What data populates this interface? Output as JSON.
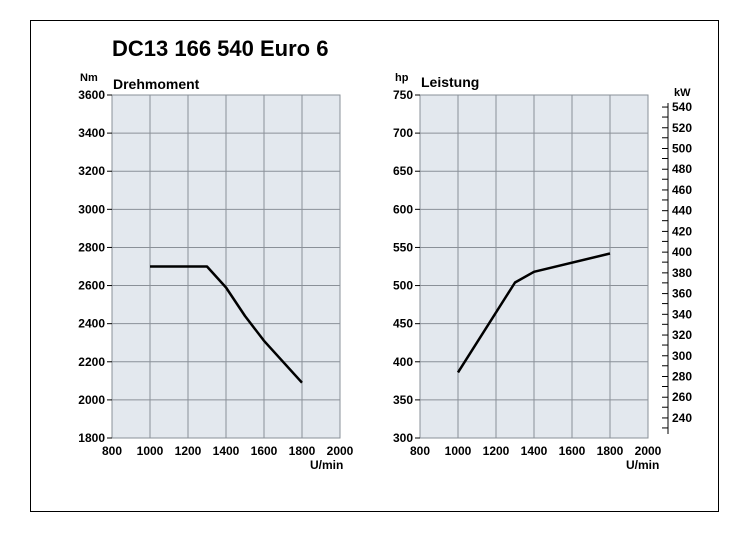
{
  "title": "DC13 166 540 Euro 6",
  "chart_data": [
    {
      "type": "line",
      "title": "Drehmoment",
      "ylabel": "Nm",
      "xlabel": "U/min",
      "xlim": [
        800,
        2000
      ],
      "ylim": [
        1800,
        3600
      ],
      "xticks": [
        800,
        1000,
        1200,
        1400,
        1600,
        1800,
        2000
      ],
      "yticks": [
        1800,
        2000,
        2200,
        2400,
        2600,
        2800,
        3000,
        3200,
        3400,
        3600
      ],
      "grid": true,
      "series": [
        {
          "x": [
            1000,
            1300,
            1400,
            1500,
            1600,
            1800
          ],
          "y": [
            2700,
            2700,
            2590,
            2440,
            2310,
            2090
          ]
        }
      ]
    },
    {
      "type": "line",
      "title": "Leistung",
      "ylabel": "hp",
      "xlabel": "U/min",
      "xlim": [
        800,
        2000
      ],
      "ylim": [
        300,
        750
      ],
      "xticks": [
        800,
        1000,
        1200,
        1400,
        1600,
        1800,
        2000
      ],
      "yticks": [
        300,
        350,
        400,
        450,
        500,
        550,
        600,
        650,
        700,
        750
      ],
      "secondary_axis": {
        "label": "kW",
        "ticks": [
          240,
          260,
          280,
          300,
          320,
          340,
          360,
          380,
          400,
          420,
          440,
          460,
          480,
          500,
          520,
          540
        ]
      },
      "grid": true,
      "series": [
        {
          "x": [
            1000,
            1300,
            1400,
            1800
          ],
          "y": [
            386,
            504,
            518,
            542
          ]
        }
      ]
    }
  ]
}
